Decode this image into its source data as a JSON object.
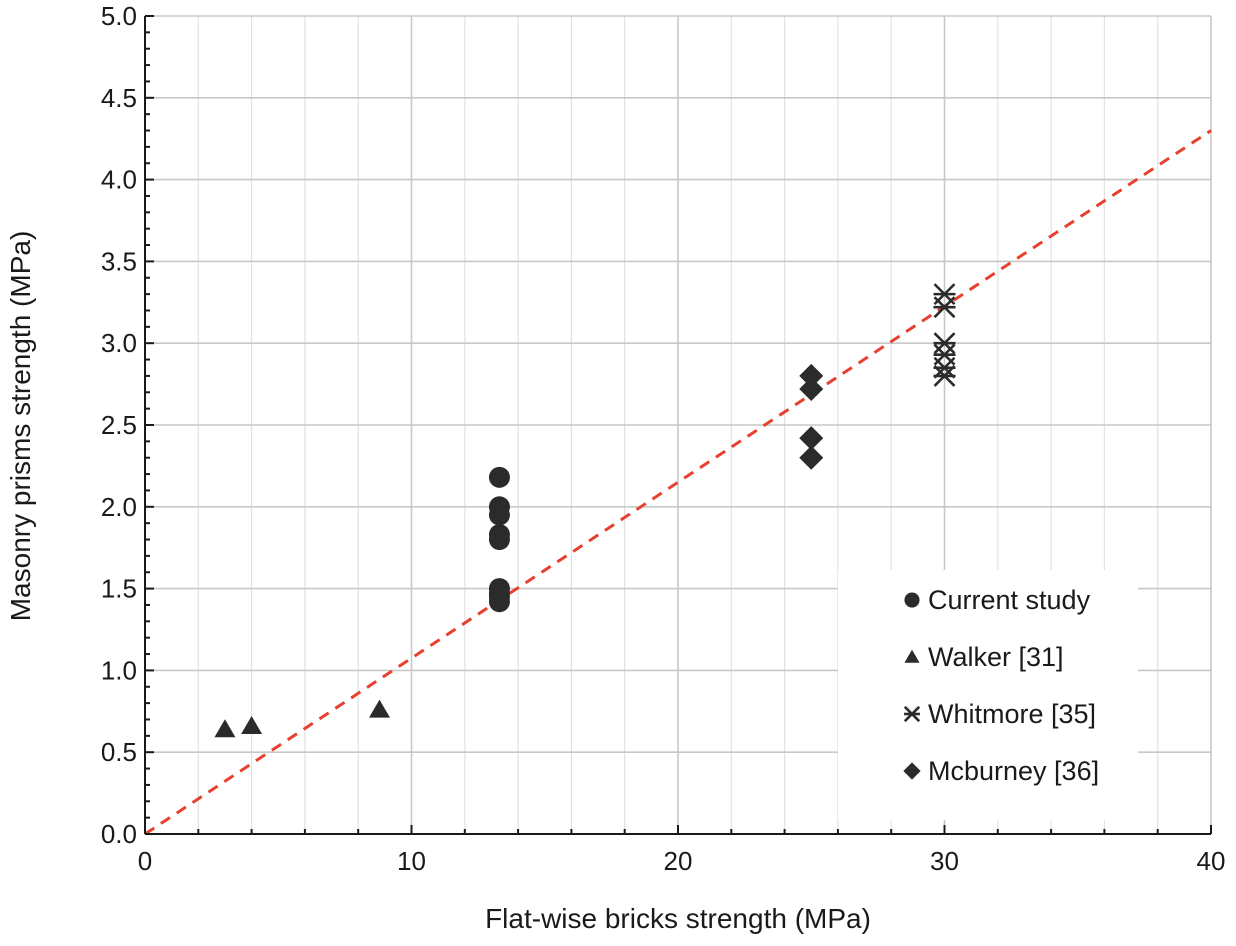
{
  "chart_data": {
    "type": "scatter",
    "title": "",
    "xlabel": "Flat-wise bricks strength (MPa)",
    "ylabel": "Masonry prisms strength (MPa)",
    "xlim": [
      0,
      40
    ],
    "ylim": [
      0,
      5
    ],
    "x_ticks": [
      "0",
      "10",
      "20",
      "30",
      "40"
    ],
    "y_ticks": [
      "0.0",
      "0.5",
      "1.0",
      "1.5",
      "2.0",
      "2.5",
      "3.0",
      "3.5",
      "4.0",
      "4.5",
      "5.0"
    ],
    "grid": true,
    "legend_position": "bottom-right",
    "series": [
      {
        "name": "Current study",
        "marker": "circle",
        "color": "#2b2b2b",
        "points": [
          [
            13.3,
            2.18
          ],
          [
            13.3,
            2.0
          ],
          [
            13.3,
            1.95
          ],
          [
            13.3,
            1.83
          ],
          [
            13.3,
            1.8
          ],
          [
            13.3,
            1.5
          ],
          [
            13.3,
            1.47
          ],
          [
            13.3,
            1.45
          ],
          [
            13.3,
            1.42
          ]
        ]
      },
      {
        "name": "Walker [31]",
        "marker": "triangle",
        "color": "#2b2b2b",
        "points": [
          [
            3.0,
            0.64
          ],
          [
            4.0,
            0.66
          ],
          [
            8.8,
            0.76
          ]
        ]
      },
      {
        "name": "Whitmore [35]",
        "marker": "asterisk",
        "color": "#2b2b2b",
        "points": [
          [
            30.0,
            3.3
          ],
          [
            30.0,
            3.22
          ],
          [
            30.0,
            3.0
          ],
          [
            30.0,
            2.93
          ],
          [
            30.0,
            2.85
          ],
          [
            30.0,
            2.8
          ]
        ]
      },
      {
        "name": "Mcburney [36]",
        "marker": "diamond",
        "color": "#2b2b2b",
        "points": [
          [
            25.0,
            2.8
          ],
          [
            25.0,
            2.72
          ],
          [
            25.0,
            2.42
          ],
          [
            25.0,
            2.3
          ]
        ]
      }
    ],
    "trendline": {
      "style": "dashed",
      "color": "#e8402e",
      "points": [
        [
          0,
          0
        ],
        [
          40,
          4.3
        ]
      ]
    }
  }
}
